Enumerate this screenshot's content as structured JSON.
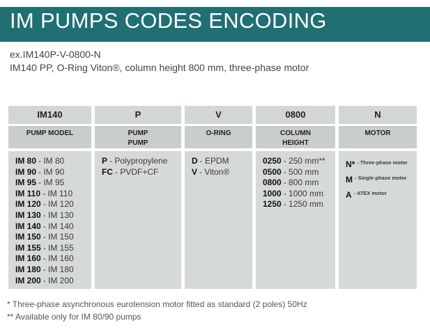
{
  "header": {
    "title": "IM PUMPS CODES ENCODING"
  },
  "example": {
    "code": "ex.IM140P-V-0800-N",
    "description": "IM140 PP, O-Ring Viton®, column height 800 mm, three-phase motor"
  },
  "table": {
    "columns": [
      {
        "header": "IM140",
        "label": "PUMP MODEL",
        "items": [
          {
            "code": "IM 80",
            "text": "- IM 80"
          },
          {
            "code": "IM 90",
            "text": "- IM 90"
          },
          {
            "code": "IM 95",
            "text": "- IM 95"
          },
          {
            "code": "IM 110",
            "text": "- IM 110"
          },
          {
            "code": "IM 120",
            "text": "- IM 120"
          },
          {
            "code": "IM 130",
            "text": "- IM 130"
          },
          {
            "code": "IM 140",
            "text": "- IM 140"
          },
          {
            "code": "IM 150",
            "text": "- IM 150"
          },
          {
            "code": "IM 155",
            "text": "- IM 155"
          },
          {
            "code": "IM 160",
            "text": "- IM 160"
          },
          {
            "code": "IM 180",
            "text": "- IM 180"
          },
          {
            "code": "IM 200",
            "text": "- IM 200"
          }
        ]
      },
      {
        "header": "P",
        "label": "PUMP\nPUMP",
        "items": [
          {
            "code": "P",
            "text": "- Polypropylene"
          },
          {
            "code": "FC",
            "text": "- PVDF+CF"
          }
        ]
      },
      {
        "header": "V",
        "label": "O-RING",
        "items": [
          {
            "code": "D",
            "text": "- EPDM"
          },
          {
            "code": "V",
            "text": "- Viton®"
          }
        ]
      },
      {
        "header": "0800",
        "label": "COLUMN\nHEIGHT",
        "items": [
          {
            "code": "0250",
            "text": "- 250 mm**"
          },
          {
            "code": "0500",
            "text": "- 500 mm"
          },
          {
            "code": "0800",
            "text": "- 800 mm"
          },
          {
            "code": "1000",
            "text": "- 1000 mm"
          },
          {
            "code": "1250",
            "text": "- 1250 mm"
          }
        ]
      },
      {
        "header": "N",
        "label": "MOTOR",
        "small": true,
        "items": [
          {
            "code": "N*",
            "text": "- Three-phase motor"
          },
          {
            "code": "M",
            "text": "- Single-phase motor"
          },
          {
            "code": "A",
            "text": "- ATEX motor"
          }
        ]
      }
    ]
  },
  "footnotes": [
    "* Three-phase asynchronous eurotension motor fitted as standard (2 poles) 50Hz",
    "** Available only for IM 80/90 pumps"
  ]
}
